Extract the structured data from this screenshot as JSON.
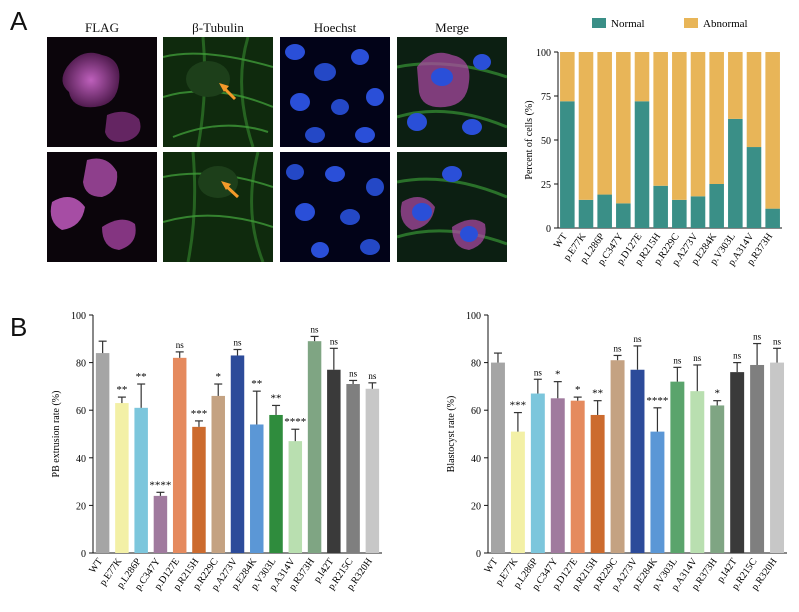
{
  "panel_labels": {
    "a": "A",
    "b": "B"
  },
  "microscopy": {
    "columns": [
      "FLAG",
      "β-Tubulin",
      "Hoechst",
      "Merge"
    ],
    "colors": {
      "flag": "#b04aa8",
      "tubulin": "#3fa83a",
      "hoechst": "#2a4fd8",
      "arrow": "#f39a2a"
    }
  },
  "chart_data": [
    {
      "type": "bar",
      "stacked": true,
      "categories": [
        "WT",
        "p.E77K",
        "p.L286P",
        "p.C347Y",
        "p.D127E",
        "p.R215H",
        "p.R229C",
        "p.A273V",
        "p.E284K",
        "p.V303L",
        "p.A314V",
        "p.R373H"
      ],
      "series": [
        {
          "name": "Normal",
          "color": "#3a8f87",
          "values": [
            72,
            16,
            19,
            14,
            72,
            24,
            16,
            18,
            25,
            62,
            46,
            11
          ]
        },
        {
          "name": "Abnormal",
          "color": "#e8b558",
          "values": [
            28,
            84,
            81,
            86,
            28,
            76,
            84,
            82,
            75,
            38,
            54,
            89
          ]
        }
      ],
      "ylabel": "Percent of cells (%)",
      "ylim": [
        0,
        100
      ],
      "yticks": [
        0,
        25,
        50,
        75,
        100
      ],
      "legend": "top"
    },
    {
      "type": "bar",
      "categories": [
        "WT",
        "p.E77K",
        "p.L286P",
        "p.C347Y",
        "p.D127E",
        "p.R215H",
        "p.R229C",
        "p.A273V",
        "p.E284K",
        "p.V303L",
        "p.A314V",
        "p.R373H",
        "p.I42T",
        "p.R215C",
        "p.R320H"
      ],
      "values": [
        84,
        63,
        61,
        24,
        82,
        53,
        66,
        83,
        54,
        58,
        47,
        89,
        77,
        71,
        69
      ],
      "errors": [
        5,
        2.5,
        10,
        1.5,
        2.5,
        2.5,
        5,
        2.5,
        14,
        4,
        5,
        2,
        9,
        1.5,
        2.5
      ],
      "significance": [
        "",
        "**",
        "**",
        "****",
        "ns",
        "***",
        "*",
        "ns",
        "**",
        "**",
        "****",
        "ns",
        "ns",
        "ns",
        "ns"
      ],
      "colors": [
        "#a5a5a5",
        "#f3f0a6",
        "#7cc6dc",
        "#a07a9e",
        "#e58a5e",
        "#cc6b2e",
        "#c4a282",
        "#2c4b9a",
        "#5b97d6",
        "#2f8c3d",
        "#b9dfb0",
        "#7fa583",
        "#3a3a3a",
        "#7f7f7f",
        "#c7c7c7"
      ],
      "ylabel": "PB extrusion rate (%)",
      "ylim": [
        0,
        100
      ],
      "yticks": [
        0,
        20,
        40,
        60,
        80,
        100
      ]
    },
    {
      "type": "bar",
      "categories": [
        "WT",
        "p.E77K",
        "p.L286P",
        "p.C347Y",
        "p.D127E",
        "p.R215H",
        "p.R229C",
        "p.A273V",
        "p.E284K",
        "p.V303L",
        "p.A314V",
        "p.R373H",
        "p.I42T",
        "p.R215C",
        "p.R320H"
      ],
      "values": [
        80,
        51,
        67,
        65,
        64,
        58,
        81,
        77,
        51,
        72,
        68,
        62,
        76,
        79,
        80
      ],
      "errors": [
        4,
        8,
        6,
        7,
        1.5,
        6,
        2,
        10,
        10,
        6,
        11,
        2,
        4,
        9,
        6
      ],
      "significance": [
        "",
        "***",
        "ns",
        "*",
        "*",
        "**",
        "ns",
        "ns",
        "****",
        "ns",
        "ns",
        "*",
        "ns",
        "ns",
        "ns"
      ],
      "colors": [
        "#a5a5a5",
        "#f3f0a6",
        "#7cc6dc",
        "#a07a9e",
        "#e58a5e",
        "#cc6b2e",
        "#c4a282",
        "#2c4b9a",
        "#5b97d6",
        "#5aa46c",
        "#b9dfb0",
        "#7fa583",
        "#3a3a3a",
        "#7f7f7f",
        "#c7c7c7"
      ],
      "ylabel": "Blastocyst rate (%)",
      "ylim": [
        0,
        100
      ],
      "yticks": [
        0,
        20,
        40,
        60,
        80,
        100
      ]
    }
  ]
}
